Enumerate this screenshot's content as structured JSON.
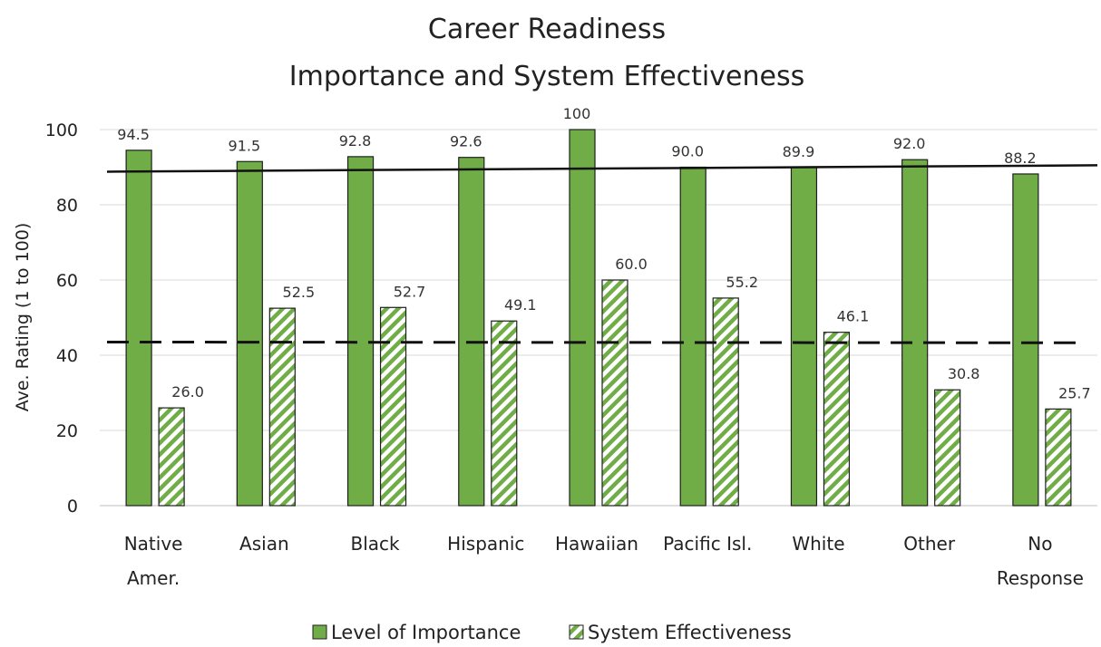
{
  "chart_data": {
    "type": "bar",
    "title": [
      "Career Readiness",
      "Importance and System Effectiveness"
    ],
    "ylabel": "Ave. Rating (1 to 100)",
    "xlabel": "",
    "ylim": [
      0,
      100
    ],
    "yticks": [
      0,
      20,
      40,
      60,
      80,
      100
    ],
    "grid": true,
    "legend_position": "bottom",
    "categories": [
      [
        "Native",
        "Amer."
      ],
      [
        "Asian"
      ],
      [
        "Black"
      ],
      [
        "Hispanic"
      ],
      [
        "Hawaiian"
      ],
      [
        "Pacific Isl."
      ],
      [
        "White"
      ],
      [
        "Other"
      ],
      [
        "No",
        "Response"
      ]
    ],
    "series": [
      {
        "name": "Level of Importance",
        "values": [
          94.5,
          91.5,
          92.8,
          92.6,
          100,
          90.0,
          89.9,
          92.0,
          88.2
        ],
        "labels": [
          "94.5",
          "91.5",
          "92.8",
          "92.6",
          "100",
          "90.0",
          "89.9",
          "92.0",
          "88.2"
        ],
        "fill": "solid",
        "color": "#70AD47"
      },
      {
        "name": "System Effectiveness",
        "values": [
          26.0,
          52.5,
          52.7,
          49.1,
          60.0,
          55.2,
          46.1,
          30.8,
          25.7
        ],
        "labels": [
          "26.0",
          "52.5",
          "52.7",
          "49.1",
          "60.0",
          "55.2",
          "46.1",
          "30.8",
          "25.7"
        ],
        "fill": "hatched",
        "color": "#70AD47"
      }
    ],
    "reference_lines": [
      {
        "style": "solid",
        "y_start": 88.8,
        "y_end": 90.5
      },
      {
        "style": "dashed",
        "y_start": 43.5,
        "y_end": 43.3
      }
    ]
  }
}
